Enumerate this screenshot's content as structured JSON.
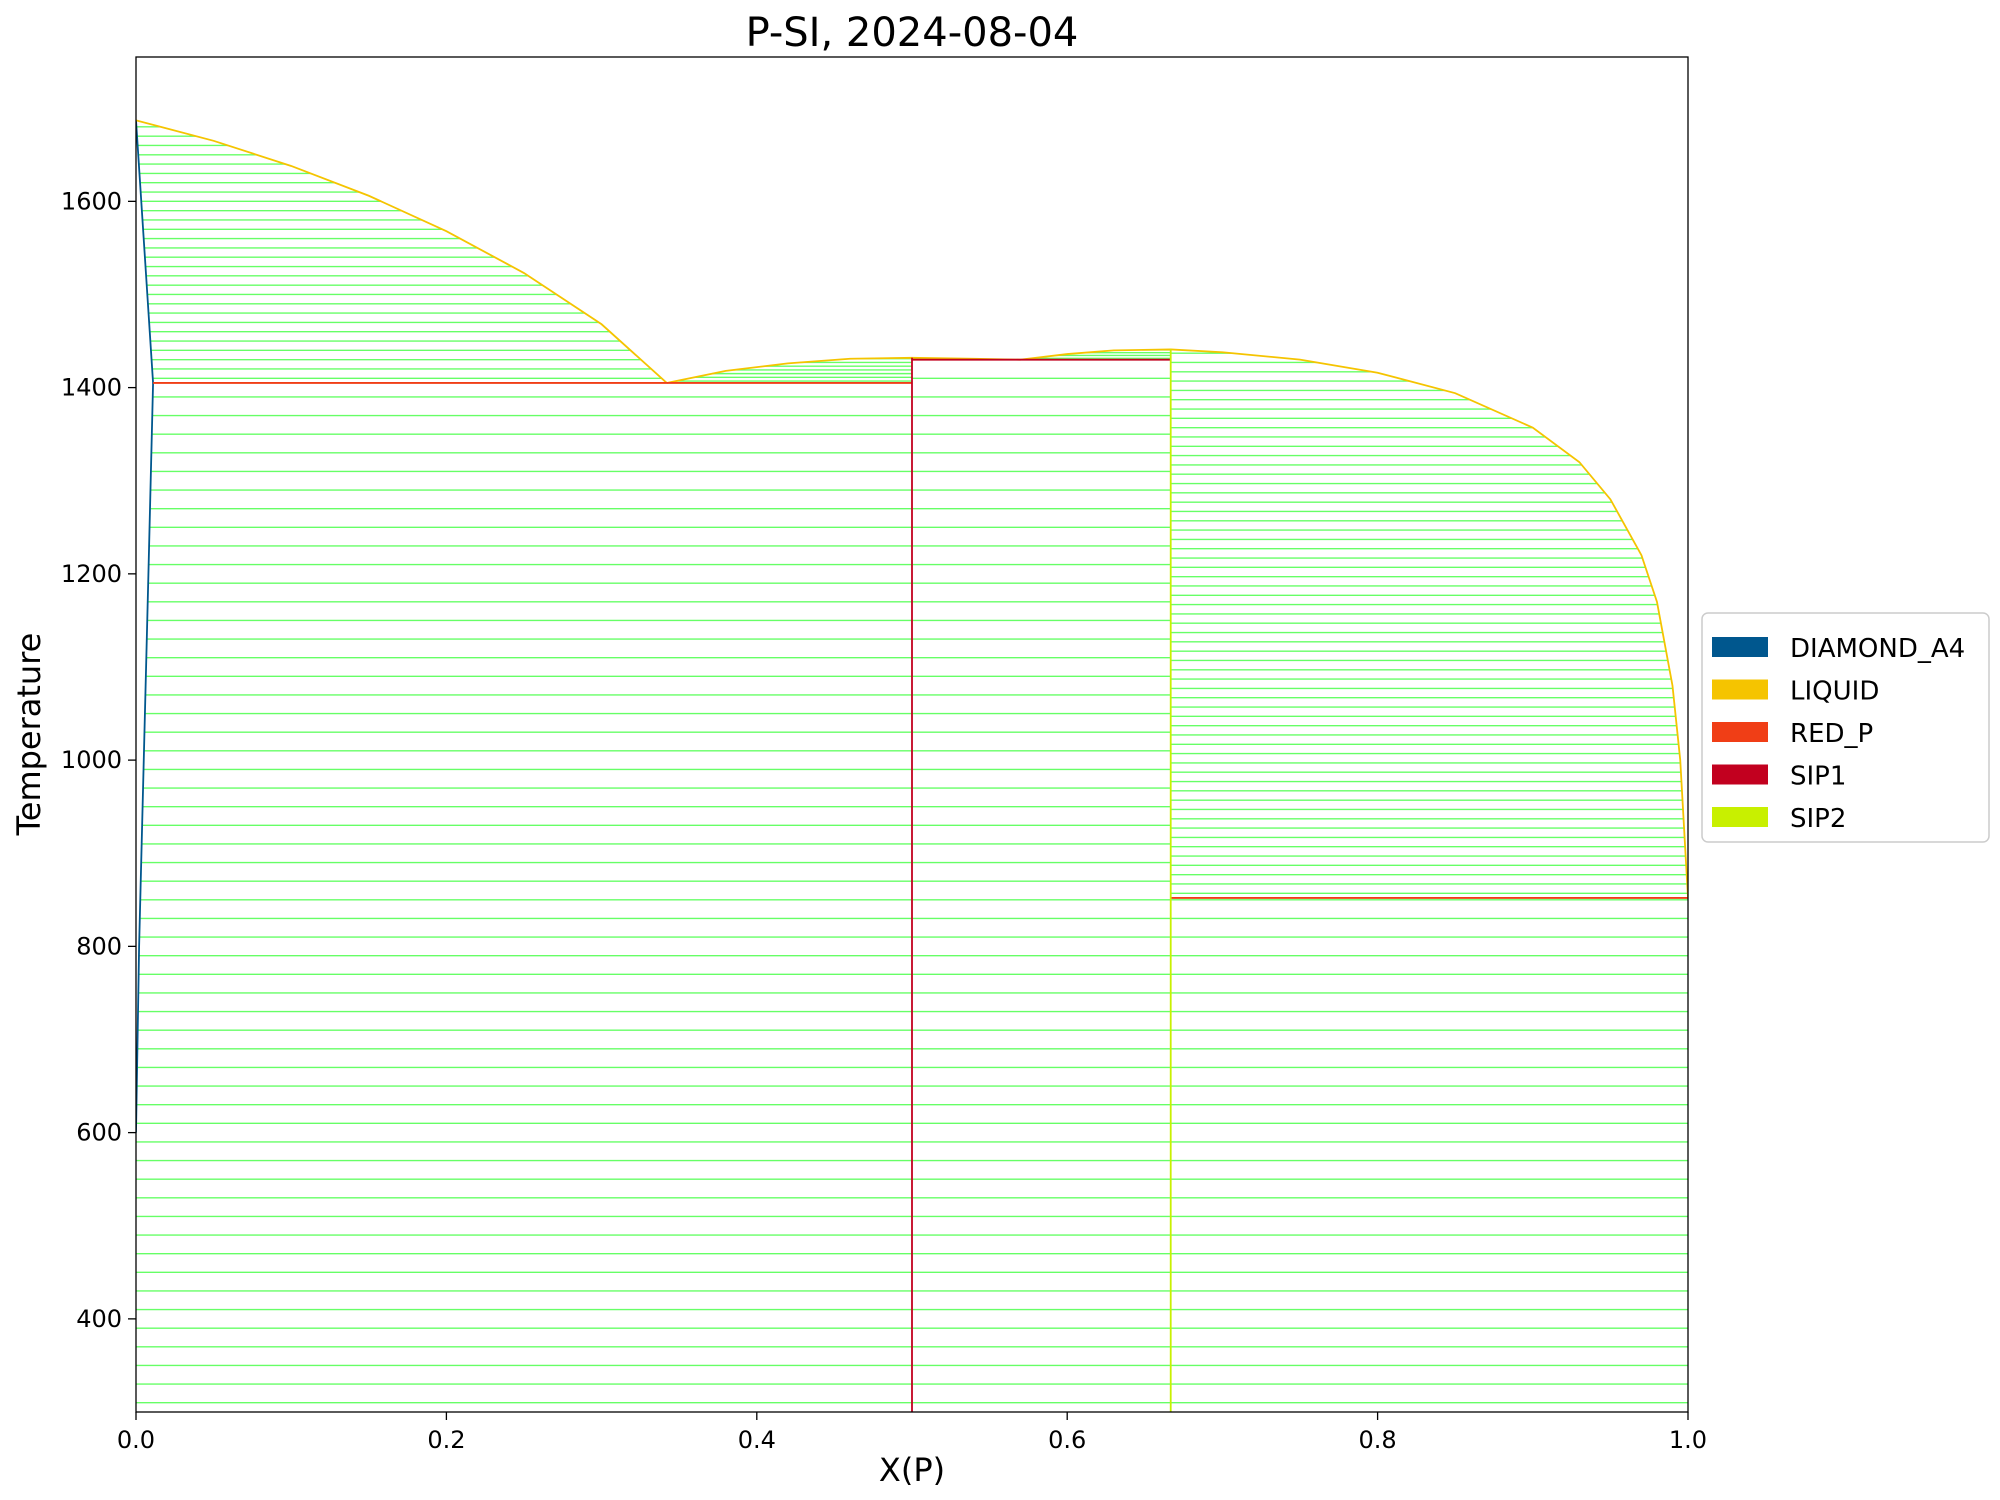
{
  "chart_data": {
    "type": "line",
    "title": "P-SI, 2024-08-04",
    "xlabel": "X(P)",
    "ylabel": "Temperature",
    "xlim": [
      0.0,
      1.0
    ],
    "ylim": [
      300,
      1755
    ],
    "xticks": [
      0.0,
      0.2,
      0.4,
      0.6,
      0.8,
      1.0
    ],
    "xtick_labels": [
      "0.0",
      "0.2",
      "0.4",
      "0.6",
      "0.8",
      "1.0"
    ],
    "yticks": [
      400,
      600,
      800,
      1000,
      1200,
      1400,
      1600
    ],
    "ytick_labels": [
      "400",
      "600",
      "800",
      "1000",
      "1200",
      "1400",
      "1600"
    ],
    "legend_position": "right",
    "legend": [
      {
        "name": "DIAMOND_A4",
        "color": "#00578e"
      },
      {
        "name": "LIQUID",
        "color": "#f5c400"
      },
      {
        "name": "RED_P",
        "color": "#f03e16"
      },
      {
        "name": "SIP1",
        "color": "#c2001f"
      },
      {
        "name": "SIP2",
        "color": "#c8f000"
      }
    ],
    "tie_line_color": "#66ff66",
    "tie_line_regions": [
      {
        "x_left": "diamond_solvus",
        "x_right": "liquidus_si",
        "t_min": 1405,
        "t_max": 1687,
        "step": 10
      },
      {
        "x_left": "diamond_solvus",
        "x_right": 0.5,
        "t_min": 300,
        "t_max": 1405,
        "step": 20
      },
      {
        "x_left": "liquidus_sip1_left",
        "x_right": 0.5,
        "t_min": 1405,
        "t_max": 1432,
        "step": 4
      },
      {
        "x_left": 0.5,
        "x_right": "liquidus_sip1_right",
        "t_min": 1430,
        "t_max": 1432,
        "step": 2
      },
      {
        "x_left": 0.5,
        "x_right": 0.6667,
        "t_min": 300,
        "t_max": 1430,
        "step": 20
      },
      {
        "x_left": "liquidus_sip2_left",
        "x_right": 0.6667,
        "t_min": 1430,
        "t_max": 1441,
        "step": 3
      },
      {
        "x_left": 0.6667,
        "x_right": "liquidus_p",
        "t_min": 852,
        "t_max": 1441,
        "step": 10
      },
      {
        "x_left": 0.6667,
        "x_right": 1.0,
        "t_min": 300,
        "t_max": 852,
        "step": 20
      }
    ],
    "series": [
      {
        "phase": "DIAMOND_A4",
        "color": "#00578e",
        "x": [
          0.0,
          0.011,
          0.008,
          0.005,
          0.002,
          0.0
        ],
        "y": [
          1687,
          1405,
          1200,
          1000,
          800,
          600
        ]
      },
      {
        "phase": "LIQUID",
        "color": "#f5c400",
        "x": [
          0.0,
          0.05,
          0.1,
          0.15,
          0.2,
          0.25,
          0.3,
          0.342
        ],
        "y": [
          1687,
          1665,
          1638,
          1606,
          1568,
          1523,
          1468,
          1405
        ]
      },
      {
        "phase": "LIQUID",
        "color": "#f5c400",
        "x": [
          0.342,
          0.38,
          0.42,
          0.46,
          0.5,
          0.54,
          0.57
        ],
        "y": [
          1405,
          1418,
          1426,
          1431,
          1432,
          1431,
          1430
        ]
      },
      {
        "phase": "LIQUID",
        "color": "#f5c400",
        "x": [
          0.57,
          0.6,
          0.63,
          0.6667,
          0.7,
          0.75,
          0.8,
          0.85,
          0.9,
          0.93,
          0.95,
          0.97,
          0.98,
          0.99,
          0.995,
          1.0
        ],
        "y": [
          1430,
          1436,
          1440,
          1441,
          1438,
          1430,
          1416,
          1394,
          1357,
          1320,
          1280,
          1220,
          1170,
          1080,
          1000,
          852
        ]
      },
      {
        "phase": "RED_P",
        "color": "#f03e16",
        "x": [
          0.011,
          0.5
        ],
        "y": [
          1405,
          1405
        ]
      },
      {
        "phase": "RED_P",
        "color": "#f03e16",
        "x": [
          0.6667,
          1.0
        ],
        "y": [
          852,
          852
        ]
      },
      {
        "phase": "SIP1",
        "color": "#c2001f",
        "x": [
          0.5,
          0.5
        ],
        "y": [
          300,
          1432
        ]
      },
      {
        "phase": "SIP1",
        "color": "#c2001f",
        "x": [
          0.5,
          0.6667
        ],
        "y": [
          1430,
          1430
        ]
      },
      {
        "phase": "SIP2",
        "color": "#c8f000",
        "x": [
          0.6667,
          0.6667
        ],
        "y": [
          300,
          1441
        ]
      }
    ]
  }
}
